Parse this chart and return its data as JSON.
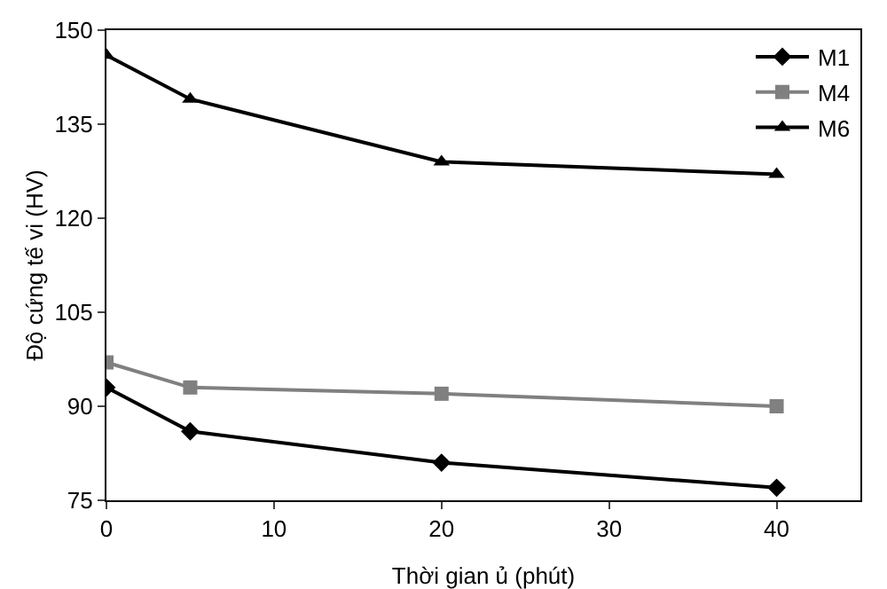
{
  "chart_data": {
    "type": "line",
    "xlabel": "Thời gian ủ (phút)",
    "ylabel": "Độ cứng tế vi (HV)",
    "x": [
      0,
      5,
      20,
      40
    ],
    "series": [
      {
        "name": "M1",
        "color": "#000000",
        "marker": "diamond",
        "values": [
          93,
          86,
          81,
          77
        ]
      },
      {
        "name": "M4",
        "color": "#808080",
        "marker": "square",
        "values": [
          97,
          93,
          92,
          90
        ]
      },
      {
        "name": "M6",
        "color": "#000000",
        "marker": "triangle",
        "values": [
          146,
          139,
          129,
          127
        ]
      }
    ],
    "xlim": [
      0,
      45
    ],
    "xticks": [
      0,
      10,
      20,
      30,
      40
    ],
    "ylim": [
      75,
      150
    ],
    "yticks": [
      75,
      90,
      105,
      120,
      135,
      150
    ],
    "grid": false,
    "legend": "top right",
    "line_style": "solid"
  }
}
